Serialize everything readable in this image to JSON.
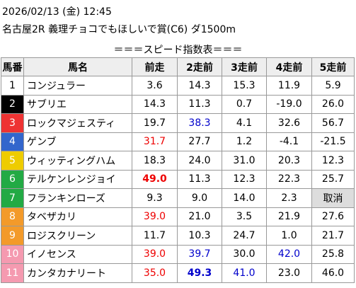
{
  "header": {
    "datetime": "2026/02/13 (金) 12:45",
    "race": "名古屋2R 義理チョコでもほしいで賞(C6) ダ1500m"
  },
  "table": {
    "title": "＝＝＝スピード指数表＝＝＝",
    "columns": [
      "馬番",
      "馬名",
      "前走",
      "2走前",
      "3走前",
      "4走前",
      "5走前"
    ],
    "rows": [
      [
        "1",
        "コンジュラー",
        "3.6",
        "14.3",
        "15.3",
        "11.9",
        "5.9"
      ],
      [
        "2",
        "サブリエ",
        "14.3",
        "11.3",
        "0.7",
        "-19.0",
        "26.0"
      ],
      [
        "3",
        "ロックマジェスティ",
        "19.7",
        "38.3",
        "4.1",
        "32.6",
        "56.7"
      ],
      [
        "4",
        "ゲンブ",
        "31.7",
        "27.7",
        "1.2",
        "-4.1",
        "-21.5"
      ],
      [
        "5",
        "ウィッティングハム",
        "18.3",
        "24.0",
        "31.0",
        "20.3",
        "12.3"
      ],
      [
        "6",
        "テルケンレンジョイ",
        "49.0",
        "11.3",
        "12.3",
        "22.3",
        "25.7"
      ],
      [
        "7",
        "フランキンローズ",
        "9.3",
        "9.0",
        "14.0",
        "2.3",
        "取消"
      ],
      [
        "8",
        "タベザカリ",
        "39.0",
        "21.0",
        "3.5",
        "21.9",
        "27.6"
      ],
      [
        "9",
        "ロジスクリーン",
        "11.7",
        "10.3",
        "24.7",
        "1.0",
        "21.7"
      ],
      [
        "10",
        "イノセンス",
        "39.0",
        "39.7",
        "30.0",
        "42.0",
        "25.8"
      ],
      [
        "11",
        "カンタカナリート",
        "35.0",
        "49.3",
        "41.0",
        "23.0",
        "46.0"
      ]
    ]
  }
}
